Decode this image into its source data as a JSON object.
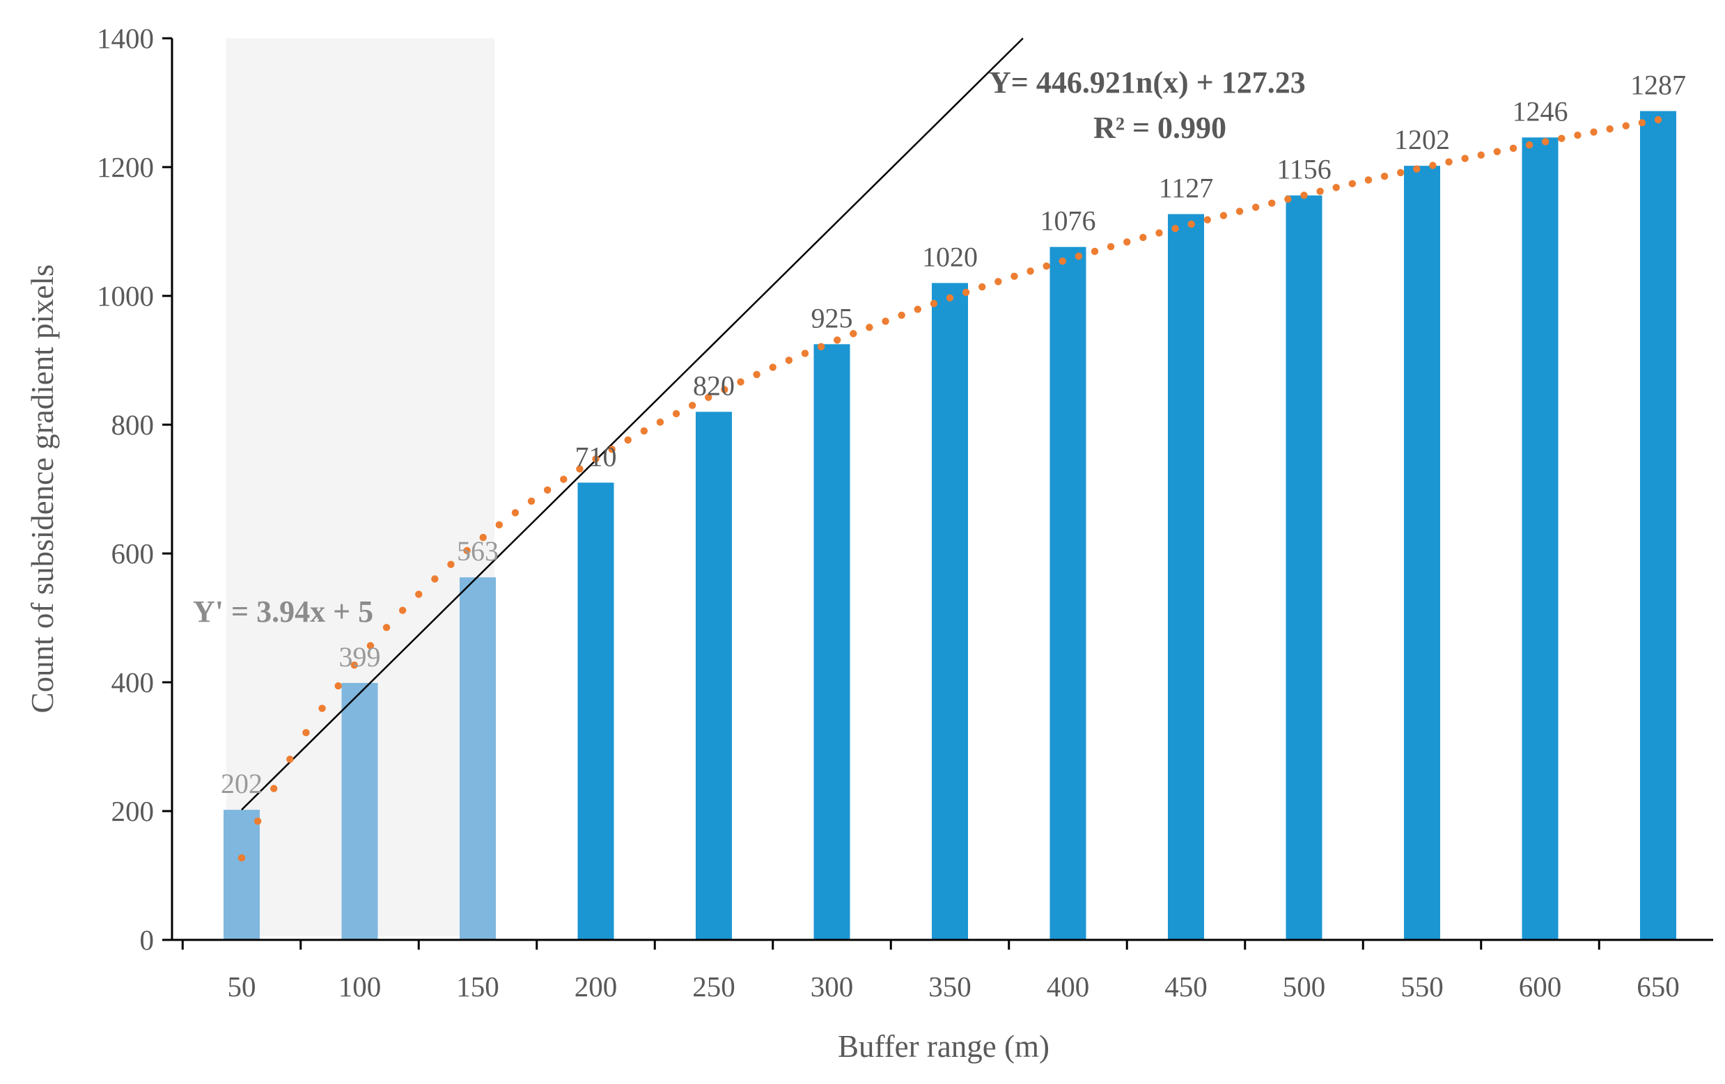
{
  "chart_data": {
    "type": "bar",
    "title": "",
    "xlabel": "Buffer range (m)",
    "ylabel": "Count of subsidence gradient pixels",
    "categories": [
      "50",
      "100",
      "150",
      "200",
      "250",
      "300",
      "350",
      "400",
      "450",
      "500",
      "550",
      "600",
      "650"
    ],
    "values": [
      202,
      399,
      563,
      710,
      820,
      925,
      1020,
      1076,
      1127,
      1156,
      1202,
      1246,
      1287
    ],
    "value_labels": [
      "202",
      "399",
      "563",
      "710",
      "820",
      "925",
      "1020",
      "1076",
      "1127",
      "1156",
      "1202",
      "1246",
      "1287"
    ],
    "ylim": [
      0,
      1400
    ],
    "yticks": [
      "0",
      "200",
      "400",
      "600",
      "800",
      "1000",
      "1200",
      "1400"
    ],
    "grid": false,
    "highlight_region_categories": [
      "50",
      "100",
      "150"
    ],
    "trendlines": [
      {
        "name": "logarithmic",
        "equation": "Y= 446.921n(x) + 127.23",
        "r_squared": "R² = 0.990",
        "style": "dotted",
        "color": "#ED7D31",
        "a": 446.92,
        "b": 127.23
      },
      {
        "name": "linear",
        "equation": "Y' = 3.94x + 5",
        "style": "solid",
        "color": "#000000",
        "from_category_value": 202,
        "slope_per_category": 181
      }
    ],
    "colors": {
      "bar": "#1B96D3",
      "bar_highlight": "#7FB7DE",
      "region": "#F4F4F4",
      "axis": "#000000"
    }
  }
}
